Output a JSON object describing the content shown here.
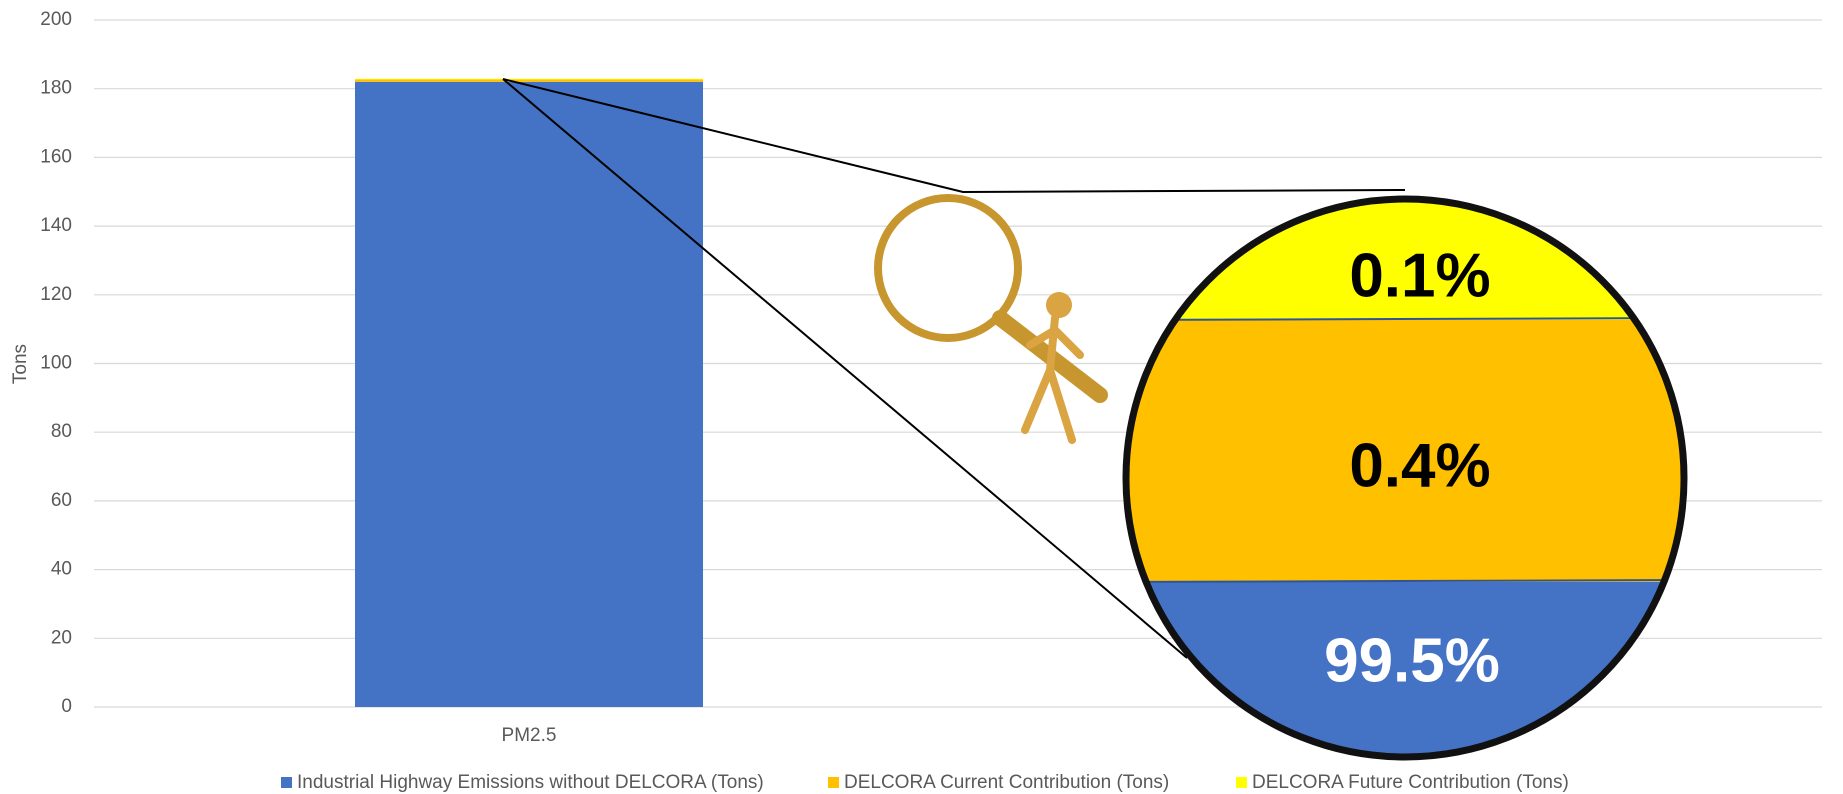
{
  "chart_data": {
    "type": "stacked_bar",
    "y_label": "Tons",
    "categories": [
      "PM2.5"
    ],
    "series": [
      {
        "name": "Industrial Highway Emissions without DELCORA (Tons)",
        "color": "#4472c4",
        "values": [
          182
        ]
      },
      {
        "name": "DELCORA Current Contribution (Tons)",
        "color": "#ffc000",
        "values": [
          0.7
        ]
      },
      {
        "name": "DELCORA Future Contribution (Tons)",
        "color": "#ffff00",
        "values": [
          0.2
        ]
      }
    ],
    "ylim": [
      0,
      200
    ],
    "yticks": [
      0,
      20,
      40,
      60,
      80,
      100,
      120,
      140,
      160,
      180,
      200
    ],
    "grid": true,
    "legend": "bottom",
    "zoom_labels": [
      "99.5%",
      "0.4%",
      "0.1%"
    ]
  }
}
